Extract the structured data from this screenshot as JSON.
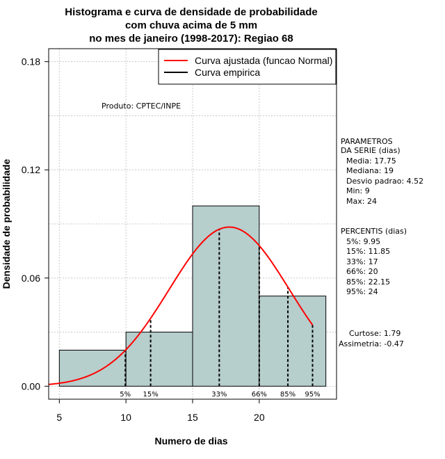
{
  "chart_data": {
    "type": "bar",
    "title_lines": [
      "Histograma e curva de densidade de probabilidade",
      "com chuva acima de 5 mm",
      "no mes de janeiro (1998-2017): Regiao 68"
    ],
    "xlabel": "Numero de dias",
    "ylabel": "Densidade de probabilidade",
    "xlim": [
      4.2,
      25.8
    ],
    "ylim": [
      -0.0072,
      0.1872
    ],
    "x_ticks": [
      5,
      10,
      15,
      20
    ],
    "y_ticks": [
      0.0,
      0.06,
      0.12,
      0.18
    ],
    "y_tick_labels": [
      "0.00",
      "0.06",
      "0.12",
      "0.18"
    ],
    "grid": true,
    "bins": [
      {
        "x0": 5,
        "x1": 10,
        "density": 0.02
      },
      {
        "x0": 10,
        "x1": 15,
        "density": 0.03
      },
      {
        "x0": 15,
        "x1": 20,
        "density": 0.1
      },
      {
        "x0": 20,
        "x1": 25,
        "density": 0.05
      }
    ],
    "bar_color": "#b6cecc",
    "normal_curve": {
      "name": "Curva ajustada (funcao Normal)",
      "mean": 17.75,
      "sd": 4.52,
      "x_range": [
        4.2,
        24
      ],
      "color": "#ff0000"
    },
    "empirical_curve": {
      "name": "Curva empirica",
      "color": "#000000"
    },
    "percentiles": [
      {
        "label": "5%",
        "x": 9.95
      },
      {
        "label": "15%",
        "x": 11.85
      },
      {
        "label": "33%",
        "x": 17
      },
      {
        "label": "66%",
        "x": 20
      },
      {
        "label": "85%",
        "x": 22.15
      },
      {
        "label": "95%",
        "x": 24
      }
    ],
    "legend_position": "top-right"
  },
  "produto": "Produto: CPTEC/INPE",
  "parametros": {
    "heading": [
      "PARAMETROS",
      "DA SERIE (dias)"
    ],
    "lines": [
      "Media: 17.75",
      "Mediana: 19",
      "Desvio padrao: 4.52",
      "Min: 9",
      "Max: 24"
    ]
  },
  "percentis": {
    "heading": "PERCENTIS (dias)",
    "lines": [
      "5%: 9.95",
      "15%: 11.85",
      "33%: 17",
      "66%: 20",
      "85%: 22.15",
      "95%: 24"
    ]
  },
  "shape": {
    "lines": [
      "Curtose: 1.79",
      "Assimetria: -0.47"
    ]
  }
}
